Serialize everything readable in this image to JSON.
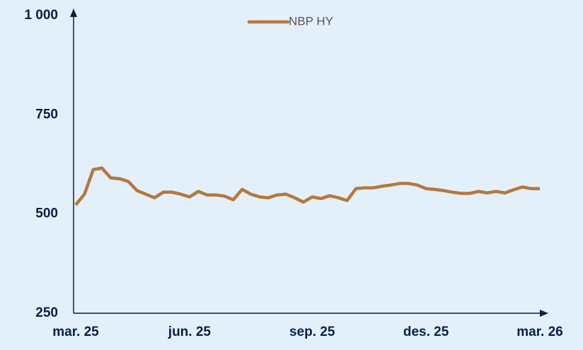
{
  "chart_data": {
    "type": "line",
    "categories": [
      "mar. 25",
      null,
      null,
      null,
      null,
      null,
      null,
      null,
      null,
      null,
      null,
      null,
      null,
      "jun. 25",
      null,
      null,
      null,
      null,
      null,
      null,
      null,
      null,
      null,
      null,
      null,
      null,
      null,
      "sep. 25",
      null,
      null,
      null,
      null,
      null,
      null,
      null,
      null,
      null,
      null,
      null,
      null,
      "des. 25",
      null,
      null,
      null,
      null,
      null,
      null,
      null,
      null,
      null,
      null,
      null,
      null,
      "mar. 26"
    ],
    "series": [
      {
        "name": "NBP HY",
        "color": "#b3793d",
        "values": [
          523,
          550,
          612,
          616,
          591,
          589,
          582,
          559,
          550,
          541,
          555,
          555,
          550,
          543,
          557,
          548,
          548,
          545,
          536,
          562,
          550,
          543,
          541,
          548,
          550,
          541,
          530,
          543,
          539,
          546,
          541,
          534,
          564,
          566,
          566,
          570,
          573,
          577,
          577,
          573,
          564,
          562,
          559,
          555,
          552,
          552,
          557,
          553,
          557,
          553,
          561,
          568,
          564,
          564
        ]
      }
    ],
    "ylim": [
      250,
      1000
    ],
    "yticks": [
      250,
      500,
      750,
      {
        "value": 1000,
        "label": "1 000"
      }
    ],
    "legend": "top"
  }
}
